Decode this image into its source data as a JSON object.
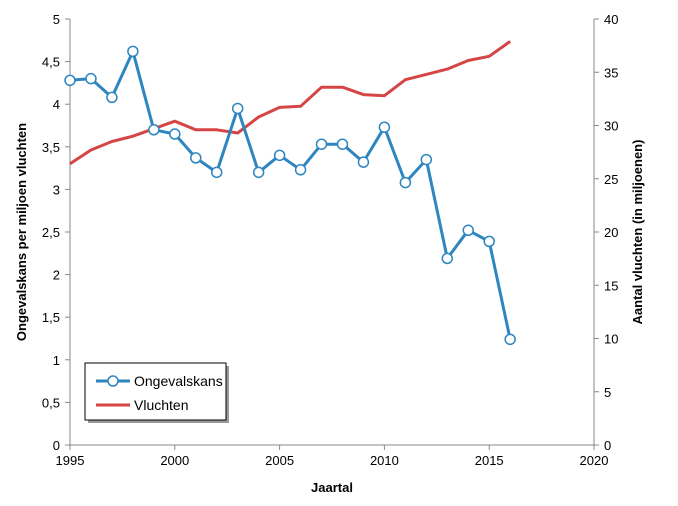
{
  "chart_data": {
    "type": "line",
    "xlabel": "Jaartal",
    "ylabel_left": "Ongevalskans per miljoen vluchten",
    "ylabel_right": "Aantal vluchten (in miljoenen)",
    "xlim": [
      1995,
      2020
    ],
    "ylim_left": [
      0,
      5
    ],
    "ylim_right": [
      0,
      40
    ],
    "x_ticks": [
      1995,
      2000,
      2005,
      2010,
      2015,
      2020
    ],
    "y_left_ticks": [
      "0",
      "0,5",
      "1",
      "1,5",
      "2",
      "2,5",
      "3",
      "3,5",
      "4",
      "4,5",
      "5"
    ],
    "y_right_ticks": [
      "0",
      "5",
      "10",
      "15",
      "20",
      "25",
      "30",
      "35",
      "40"
    ],
    "grid": false,
    "legend_position": "bottom-left",
    "series": [
      {
        "name": "Ongevalskans",
        "axis": "left",
        "color": "#2e86c1",
        "markers": true,
        "x": [
          1995,
          1996,
          1997,
          1998,
          1999,
          2000,
          2001,
          2002,
          2003,
          2004,
          2005,
          2006,
          2007,
          2008,
          2009,
          2010,
          2011,
          2012,
          2013,
          2014,
          2015,
          2016
        ],
        "values": [
          4.28,
          4.3,
          4.08,
          4.62,
          3.7,
          3.65,
          3.37,
          3.2,
          3.95,
          3.2,
          3.4,
          3.23,
          3.53,
          3.53,
          3.32,
          3.73,
          3.08,
          3.35,
          2.19,
          2.52,
          2.39,
          1.24
        ]
      },
      {
        "name": "Vluchten",
        "axis": "right",
        "color": "#d64545",
        "markers": false,
        "x": [
          1995,
          1996,
          1997,
          1998,
          1999,
          2000,
          2001,
          2002,
          2003,
          2004,
          2005,
          2006,
          2007,
          2008,
          2009,
          2010,
          2011,
          2012,
          2013,
          2014,
          2015,
          2016
        ],
        "values": [
          26.4,
          27.7,
          28.5,
          29.0,
          29.7,
          30.4,
          29.6,
          29.6,
          29.3,
          30.8,
          31.7,
          31.8,
          33.6,
          33.6,
          32.9,
          32.8,
          34.3,
          34.8,
          35.3,
          36.1,
          36.5,
          37.9
        ]
      }
    ]
  }
}
